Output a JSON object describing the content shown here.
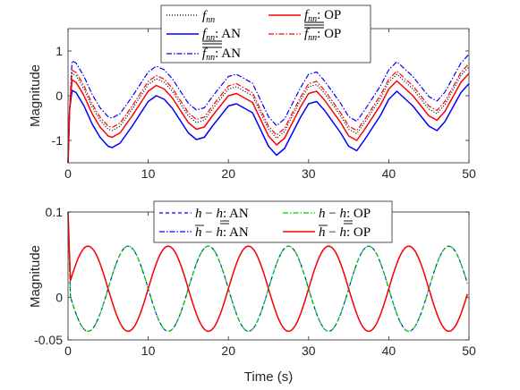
{
  "chart_data": [
    {
      "type": "line",
      "xlabel": "",
      "ylabel": "Magnitude",
      "xlim": [
        0,
        50
      ],
      "ylim": [
        -1.5,
        1.5
      ],
      "xticks": [
        0,
        10,
        20,
        30,
        40,
        50
      ],
      "yticks": [
        -1,
        0,
        1
      ],
      "xtick_labels": [
        "0",
        "10",
        "20",
        "30",
        "40",
        "50"
      ],
      "ytick_labels": [
        "-1",
        "0",
        "1"
      ],
      "legend": "top",
      "grid": false,
      "legend_entries": {
        "f_nn": "f",
        "nn_sub": "nn",
        "AN": ": AN",
        "OP": ": OP"
      },
      "series": [
        {
          "key": "f_nn",
          "color": "#000000",
          "dash": "dotted",
          "offset": 0.0,
          "points": [
            [
              0,
              -1.5
            ],
            [
              0.2,
              -0.3
            ],
            [
              0.5,
              0.5
            ],
            [
              1,
              0.45
            ],
            [
              2,
              0.15
            ],
            [
              3,
              -0.25
            ],
            [
              4,
              -0.55
            ],
            [
              5,
              -0.75
            ],
            [
              5.5,
              -0.78
            ],
            [
              6.5,
              -0.68
            ],
            [
              8,
              -0.3
            ],
            [
              10,
              0.25
            ],
            [
              11,
              0.38
            ],
            [
              12,
              0.3
            ],
            [
              13,
              0.1
            ],
            [
              15,
              -0.45
            ],
            [
              16,
              -0.6
            ],
            [
              17,
              -0.55
            ],
            [
              18,
              -0.3
            ],
            [
              20,
              0.15
            ],
            [
              21,
              0.2
            ],
            [
              23,
              0.0
            ],
            [
              25,
              -0.75
            ],
            [
              26,
              -0.95
            ],
            [
              27,
              -0.8
            ],
            [
              29,
              -0.1
            ],
            [
              30,
              0.2
            ],
            [
              31,
              0.25
            ],
            [
              32,
              0.05
            ],
            [
              34,
              -0.45
            ],
            [
              35,
              -0.75
            ],
            [
              36,
              -0.85
            ],
            [
              37,
              -0.6
            ],
            [
              39,
              -0.05
            ],
            [
              40,
              0.3
            ],
            [
              41,
              0.48
            ],
            [
              43,
              0.15
            ],
            [
              45,
              -0.3
            ],
            [
              46,
              -0.4
            ],
            [
              47,
              -0.2
            ],
            [
              49,
              0.45
            ],
            [
              50,
              0.65
            ]
          ]
        },
        {
          "key": "f_lower_AN",
          "color": "#0000ff",
          "dash": "solid",
          "offset": -0.38,
          "points": [
            [
              0,
              -1.5
            ],
            [
              0.2,
              -0.3
            ],
            [
              0.5,
              0.5
            ],
            [
              1,
              0.45
            ],
            [
              2,
              0.15
            ],
            [
              3,
              -0.25
            ],
            [
              4,
              -0.55
            ],
            [
              5,
              -0.75
            ],
            [
              5.5,
              -0.78
            ],
            [
              6.5,
              -0.68
            ],
            [
              8,
              -0.3
            ],
            [
              10,
              0.25
            ],
            [
              11,
              0.38
            ],
            [
              12,
              0.3
            ],
            [
              13,
              0.1
            ],
            [
              15,
              -0.45
            ],
            [
              16,
              -0.6
            ],
            [
              17,
              -0.55
            ],
            [
              18,
              -0.3
            ],
            [
              20,
              0.15
            ],
            [
              21,
              0.2
            ],
            [
              23,
              0.0
            ],
            [
              25,
              -0.75
            ],
            [
              26,
              -0.95
            ],
            [
              27,
              -0.8
            ],
            [
              29,
              -0.1
            ],
            [
              30,
              0.2
            ],
            [
              31,
              0.25
            ],
            [
              32,
              0.05
            ],
            [
              34,
              -0.45
            ],
            [
              35,
              -0.75
            ],
            [
              36,
              -0.85
            ],
            [
              37,
              -0.6
            ],
            [
              39,
              -0.05
            ],
            [
              40,
              0.3
            ],
            [
              41,
              0.48
            ],
            [
              43,
              0.15
            ],
            [
              45,
              -0.3
            ],
            [
              46,
              -0.4
            ],
            [
              47,
              -0.2
            ],
            [
              49,
              0.45
            ],
            [
              50,
              0.65
            ]
          ]
        },
        {
          "key": "f_upper_AN",
          "color": "#0000ff",
          "dash": "dashdot",
          "offset": 0.28,
          "points": [
            [
              0,
              -1.5
            ],
            [
              0.2,
              -0.3
            ],
            [
              0.5,
              0.5
            ],
            [
              1,
              0.45
            ],
            [
              2,
              0.15
            ],
            [
              3,
              -0.25
            ],
            [
              4,
              -0.55
            ],
            [
              5,
              -0.75
            ],
            [
              5.5,
              -0.78
            ],
            [
              6.5,
              -0.68
            ],
            [
              8,
              -0.3
            ],
            [
              10,
              0.25
            ],
            [
              11,
              0.38
            ],
            [
              12,
              0.3
            ],
            [
              13,
              0.1
            ],
            [
              15,
              -0.45
            ],
            [
              16,
              -0.6
            ],
            [
              17,
              -0.55
            ],
            [
              18,
              -0.3
            ],
            [
              20,
              0.15
            ],
            [
              21,
              0.2
            ],
            [
              23,
              0.0
            ],
            [
              25,
              -0.75
            ],
            [
              26,
              -0.95
            ],
            [
              27,
              -0.8
            ],
            [
              29,
              -0.1
            ],
            [
              30,
              0.2
            ],
            [
              31,
              0.25
            ],
            [
              32,
              0.05
            ],
            [
              34,
              -0.45
            ],
            [
              35,
              -0.75
            ],
            [
              36,
              -0.85
            ],
            [
              37,
              -0.6
            ],
            [
              39,
              -0.05
            ],
            [
              40,
              0.3
            ],
            [
              41,
              0.48
            ],
            [
              43,
              0.15
            ],
            [
              45,
              -0.3
            ],
            [
              46,
              -0.4
            ],
            [
              47,
              -0.2
            ],
            [
              49,
              0.45
            ],
            [
              50,
              0.65
            ]
          ]
        },
        {
          "key": "f_lower_OP",
          "color": "#ff0000",
          "dash": "solid",
          "offset": -0.15,
          "points": [
            [
              0,
              -1.5
            ],
            [
              0.2,
              -0.3
            ],
            [
              0.5,
              0.5
            ],
            [
              1,
              0.45
            ],
            [
              2,
              0.15
            ],
            [
              3,
              -0.25
            ],
            [
              4,
              -0.55
            ],
            [
              5,
              -0.75
            ],
            [
              5.5,
              -0.78
            ],
            [
              6.5,
              -0.68
            ],
            [
              8,
              -0.3
            ],
            [
              10,
              0.25
            ],
            [
              11,
              0.38
            ],
            [
              12,
              0.3
            ],
            [
              13,
              0.1
            ],
            [
              15,
              -0.45
            ],
            [
              16,
              -0.6
            ],
            [
              17,
              -0.55
            ],
            [
              18,
              -0.3
            ],
            [
              20,
              0.15
            ],
            [
              21,
              0.2
            ],
            [
              23,
              0.0
            ],
            [
              25,
              -0.75
            ],
            [
              26,
              -0.95
            ],
            [
              27,
              -0.8
            ],
            [
              29,
              -0.1
            ],
            [
              30,
              0.2
            ],
            [
              31,
              0.25
            ],
            [
              32,
              0.05
            ],
            [
              34,
              -0.45
            ],
            [
              35,
              -0.75
            ],
            [
              36,
              -0.85
            ],
            [
              37,
              -0.6
            ],
            [
              39,
              -0.05
            ],
            [
              40,
              0.3
            ],
            [
              41,
              0.48
            ],
            [
              43,
              0.15
            ],
            [
              45,
              -0.3
            ],
            [
              46,
              -0.4
            ],
            [
              47,
              -0.2
            ],
            [
              49,
              0.45
            ],
            [
              50,
              0.65
            ]
          ]
        },
        {
          "key": "f_upper_OP",
          "color": "#ff0000",
          "dash": "dashdot",
          "offset": 0.07,
          "points": [
            [
              0,
              -1.5
            ],
            [
              0.2,
              -0.3
            ],
            [
              0.5,
              0.5
            ],
            [
              1,
              0.45
            ],
            [
              2,
              0.15
            ],
            [
              3,
              -0.25
            ],
            [
              4,
              -0.55
            ],
            [
              5,
              -0.75
            ],
            [
              5.5,
              -0.78
            ],
            [
              6.5,
              -0.68
            ],
            [
              8,
              -0.3
            ],
            [
              10,
              0.25
            ],
            [
              11,
              0.38
            ],
            [
              12,
              0.3
            ],
            [
              13,
              0.1
            ],
            [
              15,
              -0.45
            ],
            [
              16,
              -0.6
            ],
            [
              17,
              -0.55
            ],
            [
              18,
              -0.3
            ],
            [
              20,
              0.15
            ],
            [
              21,
              0.2
            ],
            [
              23,
              0.0
            ],
            [
              25,
              -0.75
            ],
            [
              26,
              -0.95
            ],
            [
              27,
              -0.8
            ],
            [
              29,
              -0.1
            ],
            [
              30,
              0.2
            ],
            [
              31,
              0.25
            ],
            [
              32,
              0.05
            ],
            [
              34,
              -0.45
            ],
            [
              35,
              -0.75
            ],
            [
              36,
              -0.85
            ],
            [
              37,
              -0.6
            ],
            [
              39,
              -0.05
            ],
            [
              40,
              0.3
            ],
            [
              41,
              0.48
            ],
            [
              43,
              0.15
            ],
            [
              45,
              -0.3
            ],
            [
              46,
              -0.4
            ],
            [
              47,
              -0.2
            ],
            [
              49,
              0.45
            ],
            [
              50,
              0.65
            ]
          ]
        }
      ]
    },
    {
      "type": "line",
      "xlabel": "Time (s)",
      "ylabel": "Magnitude",
      "xlim": [
        0,
        50
      ],
      "ylim": [
        -0.05,
        0.1
      ],
      "xticks": [
        0,
        10,
        20,
        30,
        40,
        50
      ],
      "yticks": [
        -0.05,
        0,
        0.1
      ],
      "xtick_labels": [
        "0",
        "10",
        "20",
        "30",
        "40",
        "50"
      ],
      "ytick_labels": [
        "-0.05",
        "0",
        "0.1"
      ],
      "legend": "top",
      "grid": false,
      "legend_entries": {
        "h": "h",
        "minus": "−",
        "AN": ": AN",
        "OP": ": OP"
      },
      "sine": {
        "period": 10,
        "amplitude": 0.05,
        "center": 0.01,
        "peak_time": 2.5
      },
      "series": [
        {
          "key": "h_minus_hlower_AN",
          "color": "#0000ff",
          "dash": "dashed",
          "sign": -1
        },
        {
          "key": "hupper_minus_h_AN",
          "color": "#0000ff",
          "dash": "dashdot",
          "sign": 1
        },
        {
          "key": "h_minus_hlower_OP",
          "color": "#00cc00",
          "dash": "dashdot",
          "sign": -1
        },
        {
          "key": "hupper_minus_h_OP",
          "color": "#ff0000",
          "dash": "solid",
          "sign": 1
        }
      ]
    }
  ]
}
